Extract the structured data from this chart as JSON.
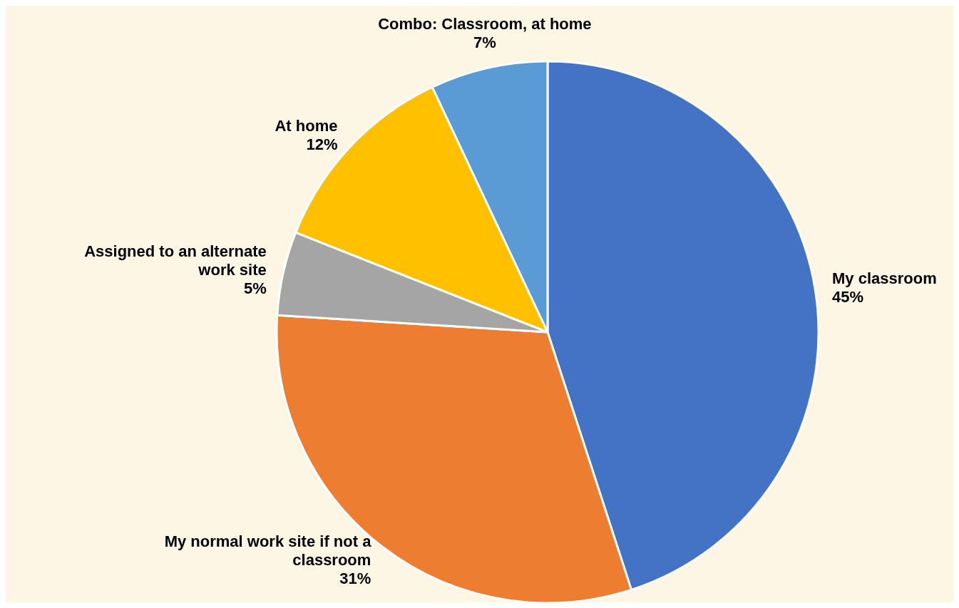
{
  "chart_data": {
    "type": "pie",
    "categories": [
      "My classroom",
      "My normal work site if not a classroom",
      "Assigned to an alternate work site",
      "At home",
      "Combo: Classroom, at home"
    ],
    "values": [
      45,
      31,
      5,
      12,
      7
    ],
    "value_labels": [
      "45%",
      "31%",
      "5%",
      "12%",
      "7%"
    ],
    "colors": [
      "#4472c4",
      "#ed7d31",
      "#a5a5a5",
      "#ffc000",
      "#5b9bd5"
    ]
  }
}
